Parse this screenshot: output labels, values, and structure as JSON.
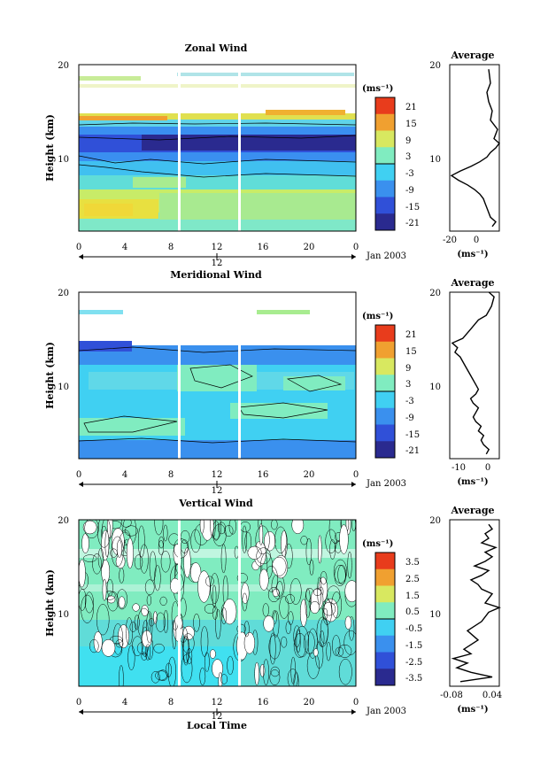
{
  "chart_data": [
    {
      "type": "heatmap",
      "panel": "zonal",
      "title": "Zonal Wind",
      "ylabel": "Height (km)",
      "ylim": [
        2,
        20
      ],
      "yticks": [
        "10",
        "20"
      ],
      "xlim": [
        0,
        24
      ],
      "xticks": [
        "0",
        "4",
        "8",
        "12",
        "16",
        "20",
        "0"
      ],
      "day_label": "12",
      "date_label": "Jan 2003",
      "colorbar": {
        "unit": "(ms⁻¹)",
        "ticks": [
          "21",
          "15",
          "9",
          "3",
          "-3",
          "-9",
          "-15",
          "-21"
        ]
      },
      "profile": {
        "series_unit": "Height (km)"
      }
    },
    {
      "type": "heatmap",
      "panel": "meridional",
      "title": "Meridional Wind",
      "ylabel": "Height (km)",
      "ylim": [
        2,
        20
      ],
      "yticks": [
        "10",
        "20"
      ],
      "xlim": [
        0,
        24
      ],
      "xticks": [
        "0",
        "4",
        "8",
        "12",
        "16",
        "20",
        "0"
      ],
      "day_label": "12",
      "date_label": "Jan 2003",
      "colorbar": {
        "unit": "(ms⁻¹)",
        "ticks": [
          "21",
          "15",
          "9",
          "3",
          "-3",
          "-9",
          "-15",
          "-21"
        ]
      }
    },
    {
      "type": "heatmap",
      "panel": "vertical",
      "title": "Vertical Wind",
      "ylabel": "Height (km)",
      "xlabel": "Local Time",
      "ylim": [
        2,
        20
      ],
      "yticks": [
        "10",
        "20"
      ],
      "xlim": [
        0,
        24
      ],
      "xticks": [
        "0",
        "4",
        "8",
        "12",
        "16",
        "20",
        "0"
      ],
      "day_label": "12",
      "date_label": "Jan 2003",
      "colorbar": {
        "unit": "(ms⁻¹)",
        "ticks": [
          "3.5",
          "2.5",
          "1.5",
          "0.5",
          "-0.5",
          "-1.5",
          "-2.5",
          "-3.5"
        ]
      }
    },
    {
      "type": "line",
      "panel": "zonal-average",
      "title": "Average",
      "xlabel": "(ms⁻¹)",
      "xlim": [
        -20,
        8
      ],
      "xticks": [
        "-20",
        "0"
      ],
      "ylim": [
        2,
        20
      ],
      "yticks": [
        "10",
        "20"
      ],
      "x": [
        4,
        6,
        3,
        2,
        1,
        0,
        -1,
        -3,
        -6,
        -10,
        -15,
        -19,
        -14,
        -8,
        -3,
        1,
        3,
        6,
        8,
        5,
        7,
        3,
        4,
        2,
        1,
        3,
        2
      ],
      "y": [
        2.5,
        3,
        3.5,
        4,
        4.5,
        5,
        5.5,
        6,
        6.5,
        7,
        7.5,
        8,
        8.5,
        9,
        9.5,
        10,
        10.5,
        11,
        11.5,
        12,
        13,
        14,
        15,
        16,
        17,
        18,
        19.5
      ]
    },
    {
      "type": "line",
      "panel": "meridional-average",
      "title": "Average",
      "xlabel": "(ms⁻¹)",
      "xlim": [
        -14,
        5
      ],
      "xticks": [
        "-10",
        "0"
      ],
      "ylim": [
        2,
        20
      ],
      "yticks": [
        "10",
        "20"
      ],
      "x": [
        0,
        1,
        -1,
        -2,
        -1,
        -3,
        -2,
        -4,
        -5,
        -4,
        -3,
        -5,
        -6,
        -4,
        -3,
        -4,
        -6,
        -8,
        -10,
        -12,
        -11,
        -13,
        -9,
        -6,
        -3,
        0,
        2,
        3,
        1
      ],
      "y": [
        2.5,
        3,
        3.5,
        4,
        4.5,
        5,
        5.5,
        6,
        6.5,
        7,
        7.5,
        8,
        8.5,
        9,
        9.5,
        10,
        11,
        12,
        13,
        13.5,
        14,
        14.5,
        15,
        16,
        17,
        17.5,
        18.5,
        19.5,
        20
      ]
    },
    {
      "type": "line",
      "panel": "vertical-average",
      "title": "Average",
      "xlabel": "(ms⁻¹)",
      "xlim": [
        -0.08,
        0.06
      ],
      "xticks": [
        "-0.08",
        "0.04"
      ],
      "ylim": [
        2,
        20
      ],
      "yticks": [
        "10",
        "20"
      ],
      "x": [
        -0.05,
        0.04,
        -0.02,
        -0.06,
        -0.03,
        -0.07,
        -0.02,
        -0.04,
        0.0,
        -0.03,
        0.01,
        0.03,
        0.06,
        0.02,
        0.04,
        0.01,
        0.0,
        -0.02,
        0.01,
        0.03,
        -0.01,
        0.02,
        0.04,
        0.02,
        0.05,
        0.01,
        0.03,
        0.02,
        0.04,
        0.03
      ],
      "y": [
        2.5,
        3,
        3.5,
        4,
        4.5,
        5,
        5.5,
        6,
        7,
        8,
        9,
        10,
        10.5,
        11,
        12,
        12.5,
        13,
        13.5,
        14,
        14.5,
        15,
        15.5,
        16,
        16.5,
        17,
        17.5,
        18,
        18.5,
        19,
        19.5
      ]
    }
  ],
  "colors": {
    "scale": [
      "#2a2a8f",
      "#3050d8",
      "#3a90ee",
      "#40d0f2",
      "#80ecc0",
      "#d8e860",
      "#f0a030",
      "#e83c1c"
    ]
  }
}
